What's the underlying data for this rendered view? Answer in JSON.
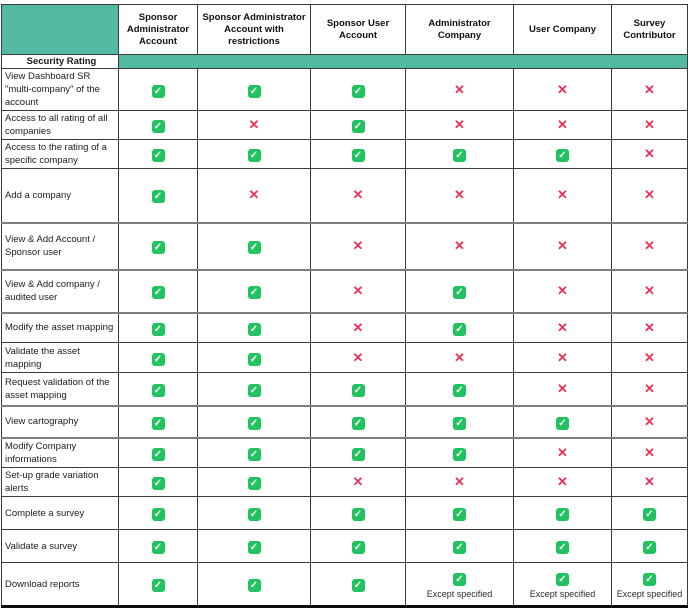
{
  "colors": {
    "header_teal": "#52baa3",
    "check_green": "#21c361",
    "cross_red": "#ea3358"
  },
  "table": {
    "section_header": "Security Rating",
    "columns": [
      "Sponsor Administrator Account",
      "Sponsor Administrator Account with restrictions",
      "Sponsor User Account",
      "Administrator Company",
      "User Company",
      "Survey Contributor"
    ],
    "rows": [
      {
        "label": "View Dashboard SR \"multi-company\" of the account",
        "cells": [
          "check",
          "check",
          "check",
          "cross",
          "cross",
          "cross"
        ]
      },
      {
        "label": "Access to all rating of all companies",
        "cells": [
          "check",
          "cross",
          "check",
          "cross",
          "cross",
          "cross"
        ]
      },
      {
        "label": "Access to the rating of a specific company",
        "cells": [
          "check",
          "check",
          "check",
          "check",
          "check",
          "cross"
        ]
      },
      {
        "label": "Add a company",
        "cells": [
          "check",
          "cross",
          "cross",
          "cross",
          "cross",
          "cross"
        ]
      },
      {
        "label": "View & Add Account / Sponsor user",
        "cells": [
          "check",
          "check",
          "cross",
          "cross",
          "cross",
          "cross"
        ]
      },
      {
        "label": "View & Add company / audited user",
        "cells": [
          "check",
          "check",
          "cross",
          "check",
          "cross",
          "cross"
        ]
      },
      {
        "label": "Modify the asset mapping",
        "cells": [
          "check",
          "check",
          "cross",
          "check",
          "cross",
          "cross"
        ]
      },
      {
        "label": "Validate the asset mapping",
        "cells": [
          "check",
          "check",
          "cross",
          "cross",
          "cross",
          "cross"
        ]
      },
      {
        "label": "Request validation of the asset mapping",
        "cells": [
          "check",
          "check",
          "check",
          "check",
          "cross",
          "cross"
        ]
      },
      {
        "label": "View cartography",
        "cells": [
          "check",
          "check",
          "check",
          "check",
          "check",
          "cross"
        ]
      },
      {
        "label": "Modify Company informations",
        "cells": [
          "check",
          "check",
          "check",
          "check",
          "cross",
          "cross"
        ]
      },
      {
        "label": "Set-up grade variation alerts",
        "cells": [
          "check",
          "check",
          "cross",
          "cross",
          "cross",
          "cross"
        ]
      },
      {
        "label": "Complete a survey",
        "cells": [
          "check",
          "check",
          "check",
          "check",
          "check",
          "check"
        ]
      },
      {
        "label": "Validate a survey",
        "cells": [
          "check",
          "check",
          "check",
          "check",
          "check",
          "check"
        ]
      },
      {
        "label": "Download reports",
        "cells": [
          "check",
          "check",
          "check",
          "check_note",
          "check_note",
          "check_note"
        ],
        "note": "Except specified"
      }
    ]
  }
}
